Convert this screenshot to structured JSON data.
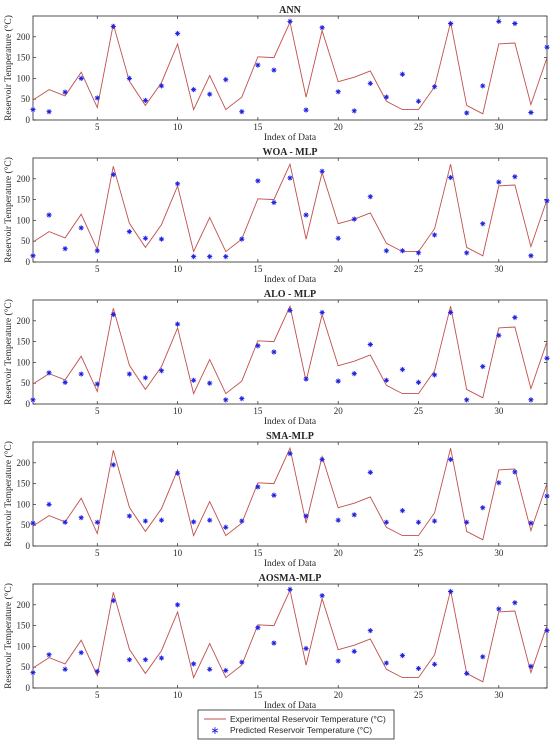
{
  "legend": {
    "experimental": "Experimental Reservoir Temperature (°C)",
    "predicted": "Predicted Reservoir Temperature (°C)"
  },
  "colors": {
    "experimental": "#c0504d",
    "predicted": "#1f1fe0"
  },
  "chart_data": [
    {
      "type": "line",
      "title": "ANN",
      "xlabel": "Index of Data",
      "ylabel": "Reservoir Temperature (°C)",
      "xlim": [
        1,
        33
      ],
      "ylim": [
        0,
        250
      ],
      "xticks": [
        5,
        10,
        15,
        20,
        25,
        30
      ],
      "yticks": [
        0,
        50,
        100,
        150,
        200
      ],
      "grid": false,
      "series": [
        {
          "name": "Experimental Reservoir Temperature (°C)",
          "kind": "line",
          "x": [
            1,
            2,
            3,
            4,
            5,
            6,
            7,
            8,
            9,
            10,
            11,
            12,
            13,
            14,
            15,
            16,
            17,
            18,
            19,
            20,
            21,
            22,
            23,
            24,
            25,
            26,
            27,
            28,
            29,
            30,
            31,
            32,
            33
          ],
          "y": [
            48,
            73,
            58,
            115,
            30,
            230,
            93,
            35,
            90,
            183,
            25,
            107,
            25,
            55,
            152,
            150,
            235,
            55,
            215,
            92,
            103,
            118,
            45,
            25,
            25,
            80,
            235,
            35,
            15,
            183,
            185,
            37,
            150
          ]
        },
        {
          "name": "Predicted Reservoir Temperature (°C)",
          "kind": "scatter",
          "x": [
            1,
            2,
            3,
            4,
            5,
            6,
            7,
            8,
            9,
            10,
            11,
            12,
            13,
            14,
            15,
            16,
            17,
            18,
            19,
            20,
            21,
            22,
            23,
            24,
            25,
            26,
            27,
            28,
            29,
            30,
            31,
            32,
            33
          ],
          "y": [
            25,
            20,
            67,
            100,
            53,
            225,
            100,
            47,
            82,
            208,
            73,
            62,
            97,
            20,
            132,
            120,
            237,
            24,
            222,
            68,
            22,
            88,
            55,
            110,
            45,
            80,
            232,
            17,
            82,
            237,
            232,
            18,
            175
          ]
        }
      ]
    },
    {
      "type": "line",
      "title": "WOA - MLP",
      "xlabel": "Index of Data",
      "ylabel": "Reservoir Temperature (°C)",
      "xlim": [
        1,
        33
      ],
      "ylim": [
        0,
        250
      ],
      "xticks": [
        5,
        10,
        15,
        20,
        25,
        30
      ],
      "yticks": [
        0,
        50,
        100,
        150,
        200
      ],
      "grid": false,
      "series": [
        {
          "name": "Experimental Reservoir Temperature (°C)",
          "kind": "line",
          "x": [
            1,
            2,
            3,
            4,
            5,
            6,
            7,
            8,
            9,
            10,
            11,
            12,
            13,
            14,
            15,
            16,
            17,
            18,
            19,
            20,
            21,
            22,
            23,
            24,
            25,
            26,
            27,
            28,
            29,
            30,
            31,
            32,
            33
          ],
          "y": [
            48,
            73,
            58,
            115,
            30,
            230,
            93,
            35,
            90,
            183,
            25,
            107,
            25,
            55,
            152,
            150,
            235,
            55,
            215,
            92,
            103,
            118,
            45,
            25,
            25,
            80,
            235,
            35,
            15,
            183,
            185,
            37,
            150
          ]
        },
        {
          "name": "Predicted Reservoir Temperature (°C)",
          "kind": "scatter",
          "x": [
            1,
            2,
            3,
            4,
            5,
            6,
            7,
            8,
            9,
            10,
            11,
            12,
            13,
            14,
            15,
            16,
            17,
            18,
            19,
            20,
            21,
            22,
            23,
            24,
            25,
            26,
            27,
            28,
            29,
            30,
            31,
            32,
            33
          ],
          "y": [
            15,
            113,
            32,
            82,
            27,
            210,
            73,
            57,
            55,
            188,
            13,
            13,
            13,
            55,
            195,
            143,
            202,
            113,
            218,
            57,
            103,
            157,
            27,
            27,
            22,
            65,
            203,
            22,
            92,
            192,
            205,
            15,
            147
          ]
        }
      ]
    },
    {
      "type": "line",
      "title": "ALO - MLP",
      "xlabel": "Index of Data",
      "ylabel": "Reservoir Temperature (°C)",
      "xlim": [
        1,
        33
      ],
      "ylim": [
        0,
        250
      ],
      "xticks": [
        5,
        10,
        15,
        20,
        25,
        30
      ],
      "yticks": [
        0,
        50,
        100,
        150,
        200
      ],
      "grid": false,
      "series": [
        {
          "name": "Experimental Reservoir Temperature (°C)",
          "kind": "line",
          "x": [
            1,
            2,
            3,
            4,
            5,
            6,
            7,
            8,
            9,
            10,
            11,
            12,
            13,
            14,
            15,
            16,
            17,
            18,
            19,
            20,
            21,
            22,
            23,
            24,
            25,
            26,
            27,
            28,
            29,
            30,
            31,
            32,
            33
          ],
          "y": [
            48,
            73,
            58,
            115,
            30,
            230,
            93,
            35,
            90,
            183,
            25,
            107,
            25,
            55,
            152,
            150,
            235,
            55,
            215,
            92,
            103,
            118,
            45,
            25,
            25,
            80,
            235,
            35,
            15,
            183,
            185,
            37,
            150
          ]
        },
        {
          "name": "Predicted Reservoir Temperature (°C)",
          "kind": "scatter",
          "x": [
            1,
            2,
            3,
            4,
            5,
            6,
            7,
            8,
            9,
            10,
            11,
            12,
            13,
            14,
            15,
            16,
            17,
            18,
            19,
            20,
            21,
            22,
            23,
            24,
            25,
            26,
            27,
            28,
            29,
            30,
            31,
            32,
            33
          ],
          "y": [
            10,
            75,
            52,
            72,
            48,
            215,
            72,
            63,
            80,
            192,
            57,
            50,
            10,
            13,
            140,
            125,
            225,
            60,
            220,
            55,
            73,
            143,
            57,
            83,
            52,
            70,
            220,
            10,
            90,
            165,
            208,
            10,
            110
          ]
        }
      ]
    },
    {
      "type": "line",
      "title": "SMA-MLP",
      "xlabel": "Index of Data",
      "ylabel": "Reservoir Temperature (°C)",
      "xlim": [
        1,
        33
      ],
      "ylim": [
        0,
        250
      ],
      "xticks": [
        5,
        10,
        15,
        20,
        25,
        30
      ],
      "yticks": [
        0,
        50,
        100,
        150,
        200
      ],
      "grid": false,
      "series": [
        {
          "name": "Experimental Reservoir Temperature (°C)",
          "kind": "line",
          "x": [
            1,
            2,
            3,
            4,
            5,
            6,
            7,
            8,
            9,
            10,
            11,
            12,
            13,
            14,
            15,
            16,
            17,
            18,
            19,
            20,
            21,
            22,
            23,
            24,
            25,
            26,
            27,
            28,
            29,
            30,
            31,
            32,
            33
          ],
          "y": [
            48,
            73,
            58,
            115,
            30,
            230,
            93,
            35,
            90,
            183,
            25,
            107,
            25,
            55,
            152,
            150,
            235,
            55,
            215,
            92,
            103,
            118,
            45,
            25,
            25,
            80,
            235,
            35,
            15,
            183,
            185,
            37,
            150
          ]
        },
        {
          "name": "Predicted Reservoir Temperature (°C)",
          "kind": "scatter",
          "x": [
            1,
            2,
            3,
            4,
            5,
            6,
            7,
            8,
            9,
            10,
            11,
            12,
            13,
            14,
            15,
            16,
            17,
            18,
            19,
            20,
            21,
            22,
            23,
            24,
            25,
            26,
            27,
            28,
            29,
            30,
            31,
            32,
            33
          ],
          "y": [
            55,
            100,
            57,
            68,
            57,
            195,
            72,
            60,
            62,
            175,
            58,
            62,
            45,
            60,
            142,
            122,
            222,
            72,
            208,
            62,
            75,
            177,
            57,
            85,
            57,
            60,
            208,
            57,
            92,
            152,
            178,
            55,
            120
          ]
        }
      ]
    },
    {
      "type": "line",
      "title": "AOSMA-MLP",
      "xlabel": "Index of Data",
      "ylabel": "Reservoir Temperature (°C)",
      "xlim": [
        1,
        33
      ],
      "ylim": [
        0,
        250
      ],
      "xticks": [
        5,
        10,
        15,
        20,
        25,
        30
      ],
      "yticks": [
        0,
        50,
        100,
        150,
        200
      ],
      "grid": false,
      "series": [
        {
          "name": "Experimental Reservoir Temperature (°C)",
          "kind": "line",
          "x": [
            1,
            2,
            3,
            4,
            5,
            6,
            7,
            8,
            9,
            10,
            11,
            12,
            13,
            14,
            15,
            16,
            17,
            18,
            19,
            20,
            21,
            22,
            23,
            24,
            25,
            26,
            27,
            28,
            29,
            30,
            31,
            32,
            33
          ],
          "y": [
            48,
            73,
            58,
            115,
            30,
            230,
            93,
            35,
            90,
            183,
            25,
            107,
            25,
            55,
            152,
            150,
            235,
            55,
            215,
            92,
            103,
            118,
            45,
            25,
            25,
            80,
            235,
            35,
            15,
            183,
            185,
            37,
            150
          ]
        },
        {
          "name": "Predicted Reservoir Temperature (°C)",
          "kind": "scatter",
          "x": [
            1,
            2,
            3,
            4,
            5,
            6,
            7,
            8,
            9,
            10,
            11,
            12,
            13,
            14,
            15,
            16,
            17,
            18,
            19,
            20,
            21,
            22,
            23,
            24,
            25,
            26,
            27,
            28,
            29,
            30,
            31,
            32,
            33
          ],
          "y": [
            37,
            80,
            45,
            85,
            40,
            210,
            68,
            68,
            72,
            200,
            58,
            45,
            42,
            62,
            145,
            108,
            237,
            95,
            222,
            65,
            88,
            138,
            60,
            78,
            47,
            57,
            232,
            35,
            75,
            190,
            205,
            52,
            138
          ]
        }
      ]
    }
  ]
}
